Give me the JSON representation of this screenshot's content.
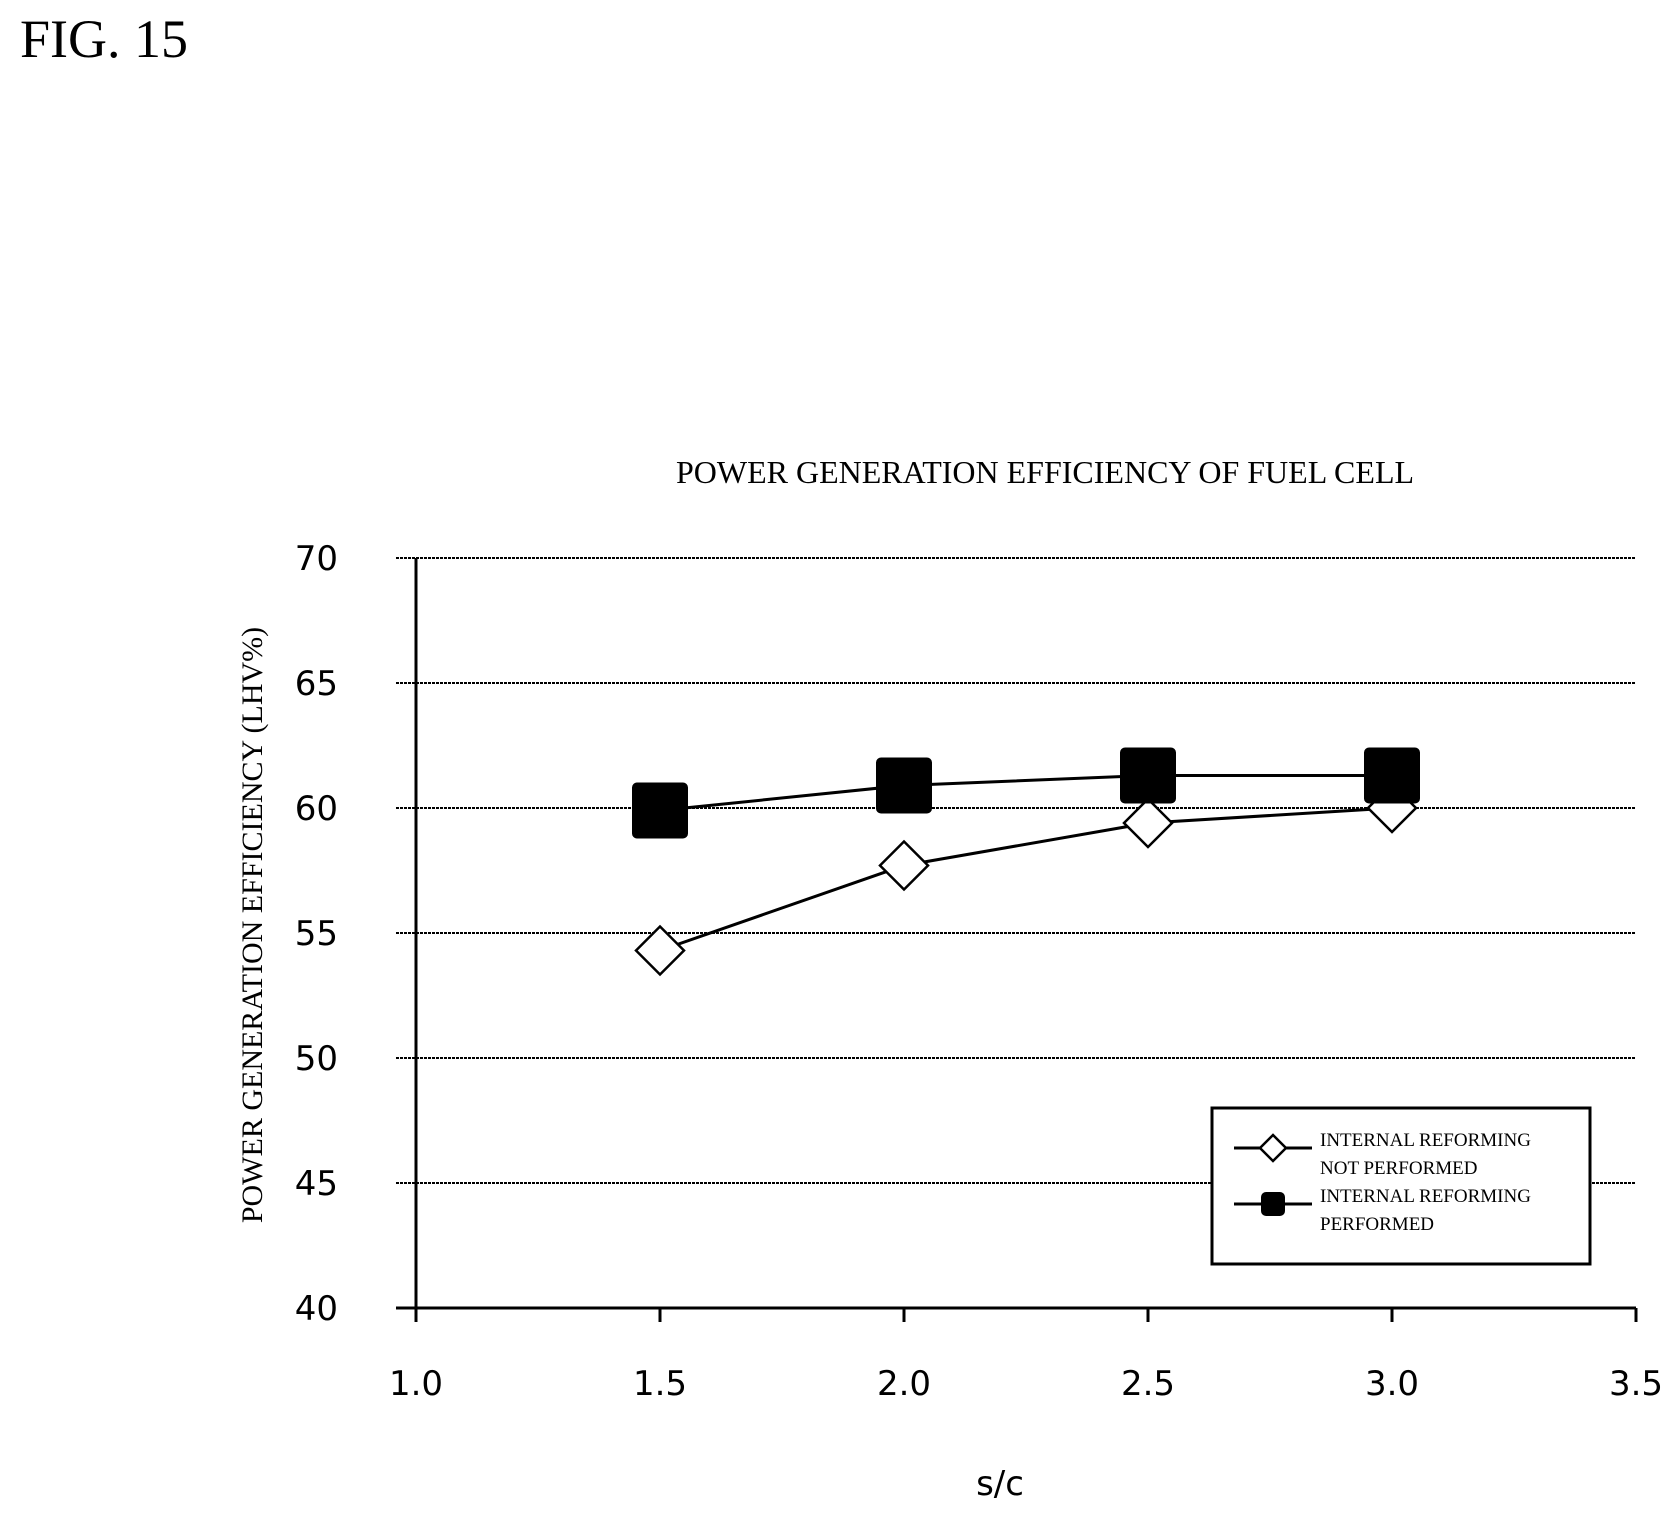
{
  "figure_label": "FIG. 15",
  "chart_data": {
    "type": "line",
    "title": "POWER GENERATION EFFICIENCY OF FUEL CELL",
    "xlabel": "s/c",
    "ylabel": "POWER GENERATION EFFICIENCY (LHV%)",
    "xlim": [
      1.0,
      3.5
    ],
    "ylim": [
      40,
      70
    ],
    "x_ticks": [
      "1.0",
      "1.5",
      "2.0",
      "2.5",
      "3.0",
      "3.5"
    ],
    "y_ticks": [
      "40",
      "45",
      "50",
      "55",
      "60",
      "65",
      "70"
    ],
    "grid": true,
    "legend_position": "bottom-right",
    "x": [
      1.5,
      2.0,
      2.5,
      3.0
    ],
    "series": [
      {
        "name": "INTERNAL REFORMING NOT PERFORMED",
        "legend_lines": [
          "INTERNAL REFORMING",
          "NOT PERFORMED"
        ],
        "marker": "open-diamond",
        "values": [
          54.3,
          57.7,
          59.4,
          60.0
        ]
      },
      {
        "name": "INTERNAL REFORMING PERFORMED",
        "legend_lines": [
          "INTERNAL REFORMING",
          "PERFORMED"
        ],
        "marker": "filled-square",
        "values": [
          59.9,
          60.9,
          61.3,
          61.3
        ]
      }
    ],
    "colors": {
      "line": "#000000",
      "grid": "#000000",
      "background": "#ffffff"
    }
  }
}
